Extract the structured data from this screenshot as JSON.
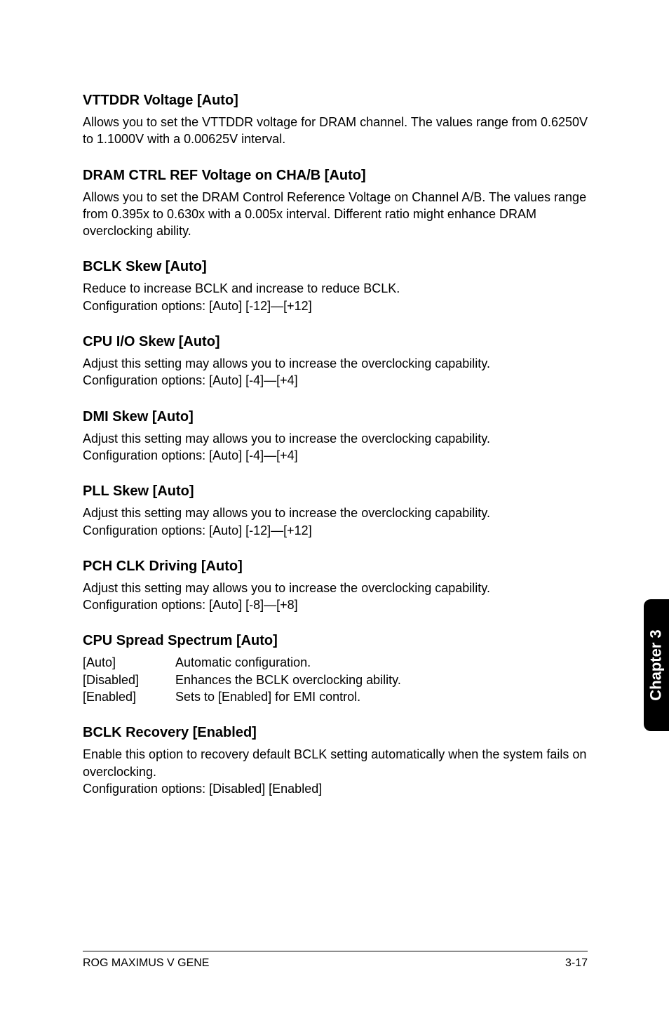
{
  "sections": [
    {
      "heading": "VTTDDR Voltage [Auto]",
      "paragraphs": [
        "Allows you to set the VTTDDR voltage for DRAM channel. The values range from 0.6250V to 1.1000V with a 0.00625V interval."
      ]
    },
    {
      "heading": "DRAM CTRL REF Voltage on CHA/B [Auto]",
      "paragraphs": [
        "Allows you to set the DRAM Control Reference Voltage on Channel A/B. The values range from 0.395x to 0.630x with a 0.005x interval. Different ratio might enhance DRAM overclocking ability."
      ]
    },
    {
      "heading": "BCLK Skew [Auto]",
      "paragraphs": [
        "Reduce to increase BCLK and increase to reduce BCLK.",
        "Configuration options: [Auto] [-12]—[+12]"
      ]
    },
    {
      "heading": "CPU I/O Skew [Auto]",
      "paragraphs": [
        "Adjust this setting may allows you to increase the overclocking capability.",
        "Configuration options: [Auto] [-4]—[+4]"
      ]
    },
    {
      "heading": "DMI Skew [Auto]",
      "paragraphs": [
        "Adjust this setting may allows you to increase the overclocking capability.",
        "Configuration options: [Auto] [-4]—[+4]"
      ]
    },
    {
      "heading": "PLL Skew [Auto]",
      "paragraphs": [
        "Adjust this setting may allows you to increase the overclocking capability.",
        "Configuration options: [Auto] [-12]—[+12]"
      ]
    },
    {
      "heading": "PCH CLK Driving [Auto]",
      "paragraphs": [
        "Adjust this setting may allows you to increase the overclocking capability.",
        "Configuration options: [Auto] [-8]—[+8]"
      ]
    },
    {
      "heading": "CPU Spread Spectrum [Auto]",
      "options": [
        {
          "label": "[Auto]",
          "desc": "Automatic configuration."
        },
        {
          "label": "[Disabled]",
          "desc": "Enhances the BCLK overclocking ability."
        },
        {
          "label": "[Enabled]",
          "desc": "Sets to [Enabled] for EMI control."
        }
      ]
    },
    {
      "heading": "BCLK Recovery [Enabled]",
      "paragraphs": [
        "Enable this option to recovery default BCLK setting automatically when the system fails on overclocking.",
        "Configuration options: [Disabled] [Enabled]"
      ]
    }
  ],
  "side_tab": "Chapter 3",
  "footer": {
    "left": "ROG MAXIMUS V GENE",
    "right": "3-17"
  }
}
